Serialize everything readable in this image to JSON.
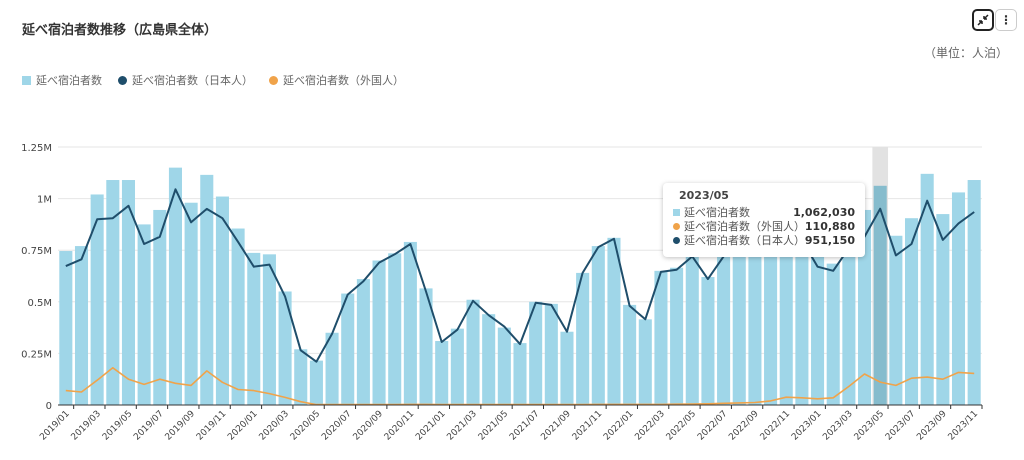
{
  "header": {
    "title": "延べ宿泊者数推移（広島県全体）",
    "unit": "（単位：人泊）",
    "collapse_icon": "collapse-arrows-icon",
    "menu_icon": "vertical-ellipsis-icon"
  },
  "tooltip": {
    "period": "2023/05",
    "rows": [
      {
        "label": "延べ宿泊者数",
        "value": "1,062,030",
        "color": "#9fd6e8"
      },
      {
        "label": "延べ宿泊者数（外国人）",
        "value": "110,880",
        "color": "#f0a34a"
      },
      {
        "label": "延べ宿泊者数（日本人）",
        "value": "951,150",
        "color": "#1f4e6b"
      }
    ]
  },
  "chart_data": {
    "type": "bar+line",
    "title": "延べ宿泊者数推移（広島県全体）",
    "ylabel": "",
    "ylim": [
      0,
      1250000
    ],
    "yticks": [
      0,
      250000,
      500000,
      750000,
      1000000,
      1250000
    ],
    "ytick_labels": [
      "0",
      "0.25M",
      "0.5M",
      "0.75M",
      "1M",
      "1.25M"
    ],
    "grid": true,
    "legend": "top-left",
    "highlighted": "2023/05",
    "categories": [
      "2019/01",
      "2019/02",
      "2019/03",
      "2019/04",
      "2019/05",
      "2019/06",
      "2019/07",
      "2019/08",
      "2019/09",
      "2019/10",
      "2019/11",
      "2019/12",
      "2020/01",
      "2020/02",
      "2020/03",
      "2020/04",
      "2020/05",
      "2020/06",
      "2020/07",
      "2020/08",
      "2020/09",
      "2020/10",
      "2020/11",
      "2020/12",
      "2021/01",
      "2021/02",
      "2021/03",
      "2021/04",
      "2021/05",
      "2021/06",
      "2021/07",
      "2021/08",
      "2021/09",
      "2021/10",
      "2021/11",
      "2021/12",
      "2022/01",
      "2022/02",
      "2022/03",
      "2022/04",
      "2022/05",
      "2022/06",
      "2022/07",
      "2022/08",
      "2022/09",
      "2022/10",
      "2022/11",
      "2022/12",
      "2023/01",
      "2023/02",
      "2023/03",
      "2023/04",
      "2023/05",
      "2023/06",
      "2023/07",
      "2023/08",
      "2023/09",
      "2023/10",
      "2023/11"
    ],
    "xtick_labels": [
      "2019/01",
      "2019/03",
      "2019/05",
      "2019/07",
      "2019/09",
      "2019/11",
      "2020/01",
      "2020/03",
      "2020/05",
      "2020/07",
      "2020/09",
      "2020/11",
      "2021/01",
      "2021/03",
      "2021/05",
      "2021/07",
      "2021/09",
      "2021/11",
      "2022/01",
      "2022/03",
      "2022/05",
      "2022/07",
      "2022/09",
      "2022/11",
      "2023/01",
      "2023/03",
      "2023/05",
      "2023/07",
      "2023/09",
      "2023/11"
    ],
    "series": [
      {
        "name": "延べ宿泊者数",
        "kind": "bar",
        "color": "#9fd6e8",
        "values": [
          746000,
          770000,
          1020000,
          1090000,
          1090000,
          875000,
          945000,
          1150000,
          980000,
          1115000,
          1010000,
          855000,
          737000,
          730000,
          550000,
          270000,
          215000,
          350000,
          540000,
          610000,
          700000,
          735000,
          790000,
          565000,
          310000,
          370000,
          510000,
          440000,
          375000,
          300000,
          500000,
          490000,
          355000,
          640000,
          770000,
          810000,
          485000,
          415000,
          650000,
          665000,
          725000,
          620000,
          730000,
          790000,
          810000,
          790000,
          850000,
          840000,
          720000,
          685000,
          850000,
          945000,
          1062030,
          820000,
          905000,
          1120000,
          925000,
          1030000,
          1090000
        ]
      },
      {
        "name": "延べ宿泊者数（日本人）",
        "kind": "line",
        "color": "#1f4e6b",
        "values": [
          673000,
          706000,
          900000,
          905000,
          965000,
          780000,
          815000,
          1045000,
          885000,
          950000,
          905000,
          790000,
          670000,
          680000,
          525000,
          265000,
          210000,
          345000,
          535000,
          600000,
          690000,
          730000,
          780000,
          550000,
          305000,
          365000,
          505000,
          435000,
          380000,
          295000,
          495000,
          485000,
          355000,
          640000,
          765000,
          805000,
          480000,
          415000,
          645000,
          655000,
          720000,
          610000,
          720000,
          780000,
          800000,
          780000,
          830000,
          800000,
          670000,
          650000,
          760000,
          815000,
          951150,
          725000,
          780000,
          990000,
          800000,
          880000,
          935000
        ]
      },
      {
        "name": "延べ宿泊者数（外国人）",
        "kind": "line",
        "color": "#f0a34a",
        "values": [
          70000,
          63000,
          120000,
          180000,
          125000,
          100000,
          125000,
          105000,
          95000,
          165000,
          110000,
          75000,
          70000,
          55000,
          37000,
          16000,
          2000,
          2000,
          2000,
          2000,
          2000,
          2000,
          3000,
          3000,
          2000,
          2000,
          2000,
          2000,
          2000,
          2000,
          2000,
          2000,
          2000,
          2000,
          3000,
          3000,
          3000,
          3000,
          3000,
          4000,
          5000,
          6000,
          8000,
          10000,
          12000,
          20000,
          38000,
          35000,
          30000,
          35000,
          90000,
          150000,
          110880,
          95000,
          130000,
          135000,
          125000,
          158000,
          153000
        ]
      }
    ]
  }
}
